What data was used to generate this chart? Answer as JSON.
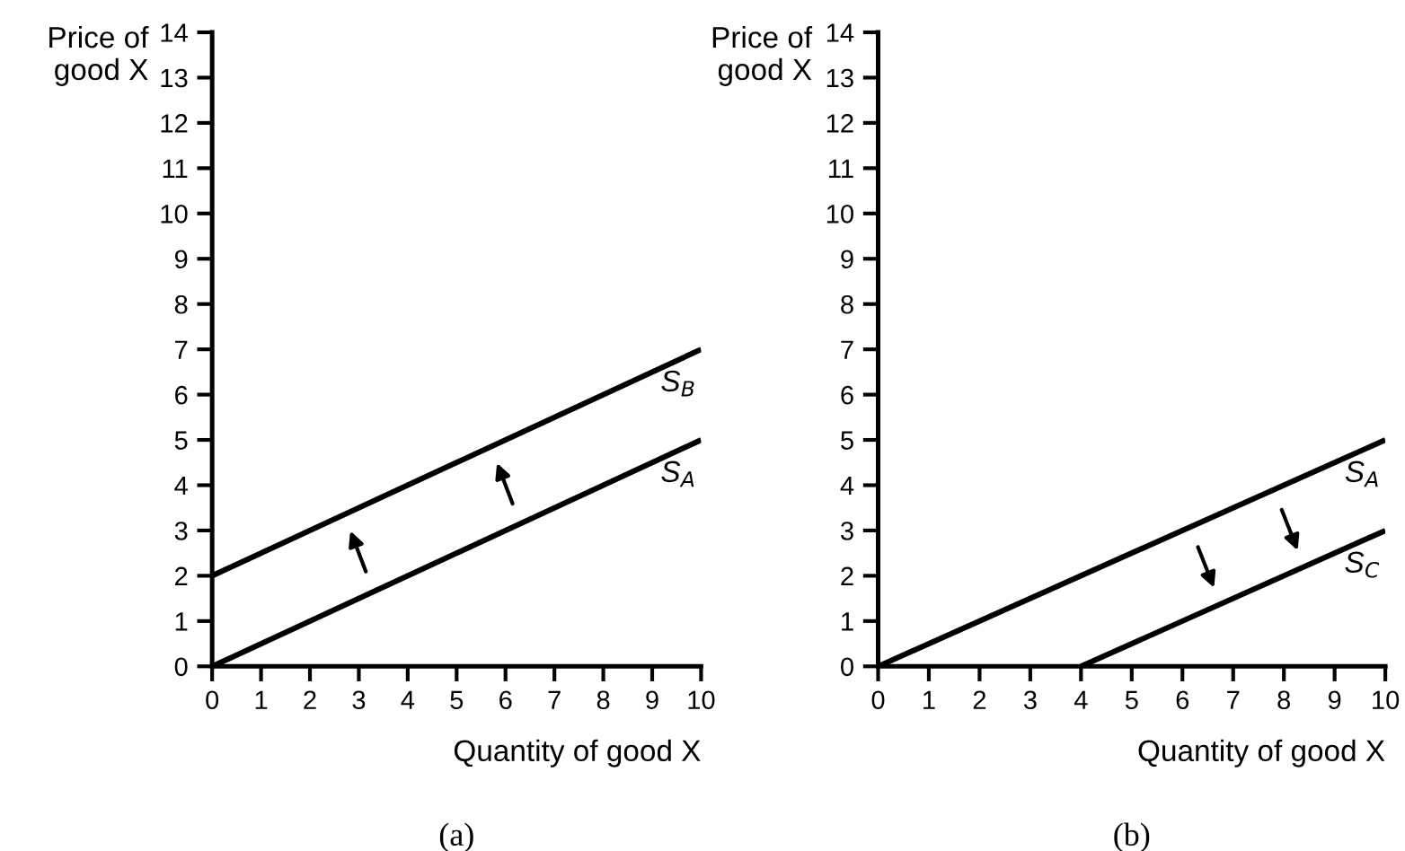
{
  "chart_data": [
    {
      "type": "line",
      "ylabel": "Price of\ngood X",
      "xlabel": "Quantity of good X",
      "annotations": [
        "(a)"
      ],
      "xlim": [
        0,
        10
      ],
      "ylim": [
        0,
        14
      ],
      "xticks": [
        0,
        1,
        2,
        3,
        4,
        5,
        6,
        7,
        8,
        9,
        10
      ],
      "yticks": [
        0,
        1,
        2,
        3,
        4,
        5,
        6,
        7,
        8,
        9,
        10,
        11,
        12,
        13,
        14
      ],
      "legend": false,
      "grid": false,
      "marker": "none",
      "line_style": "solid",
      "series": [
        {
          "name": "S$_{A}$",
          "color": "#000000",
          "x": [
            0,
            10
          ],
          "values": [
            0,
            5
          ]
        },
        {
          "name": "S$_{B}$",
          "color": "#000000",
          "x": [
            0,
            10
          ],
          "values": [
            2,
            7
          ]
        }
      ]
    },
    {
      "type": "line",
      "ylabel": "Price of\ngood X",
      "xlabel": "Quantity of good X",
      "annotations": [
        "(b)"
      ],
      "xlim": [
        0,
        10
      ],
      "ylim": [
        0,
        14
      ],
      "xticks": [
        0,
        1,
        2,
        3,
        4,
        5,
        6,
        7,
        8,
        9,
        10
      ],
      "yticks": [
        0,
        1,
        2,
        3,
        4,
        5,
        6,
        7,
        8,
        9,
        10,
        11,
        12,
        13,
        14
      ],
      "legend": false,
      "grid": false,
      "marker": "none",
      "line_style": "solid",
      "series": [
        {
          "name": "S$_{A}$",
          "color": "#000000",
          "x": [
            0,
            10
          ],
          "values": [
            0,
            5
          ]
        },
        {
          "name": "S$_{C}$",
          "color": "#000000",
          "x": [
            4,
            10
          ],
          "values": [
            0,
            3
          ]
        }
      ]
    }
  ]
}
